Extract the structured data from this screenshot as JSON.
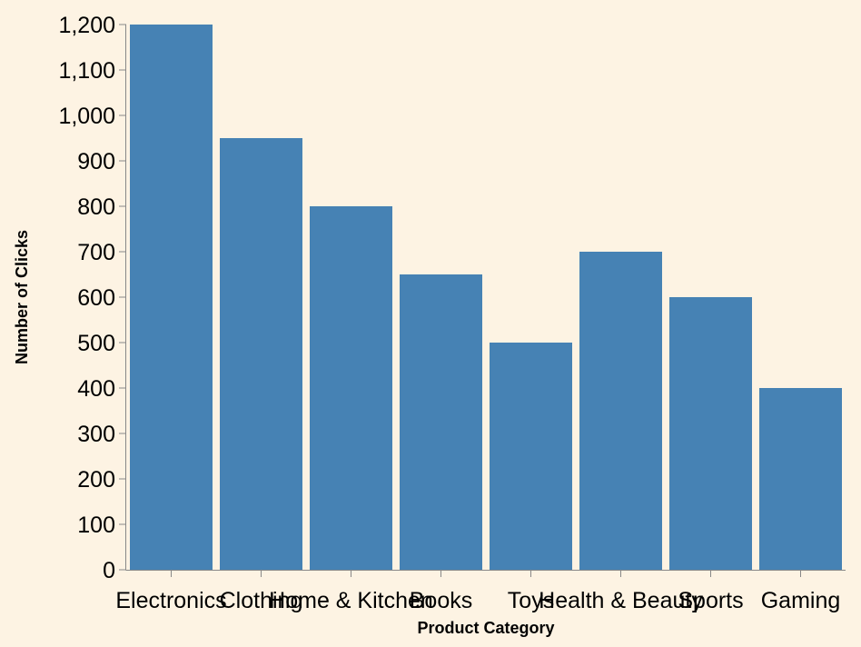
{
  "colors": {
    "background": "#fdf3e3",
    "bar": "#4682b4",
    "axis": "#888888"
  },
  "chart_data": {
    "type": "bar",
    "title": "",
    "xlabel": "Product Category",
    "ylabel": "Number of Clicks",
    "categories": [
      "Electronics",
      "Clothing",
      "Home & Kitchen",
      "Books",
      "Toys",
      "Health & Beauty",
      "Sports",
      "Gaming"
    ],
    "values": [
      1200,
      950,
      800,
      650,
      500,
      700,
      600,
      400
    ],
    "ylim": [
      0,
      1200
    ],
    "yticks": [
      0,
      100,
      200,
      300,
      400,
      500,
      600,
      700,
      800,
      900,
      1000,
      1100,
      1200
    ],
    "ytick_labels": [
      "0",
      "100",
      "200",
      "300",
      "400",
      "500",
      "600",
      "700",
      "800",
      "900",
      "1,000",
      "1,100",
      "1,200"
    ],
    "grid": false,
    "legend": "none"
  }
}
